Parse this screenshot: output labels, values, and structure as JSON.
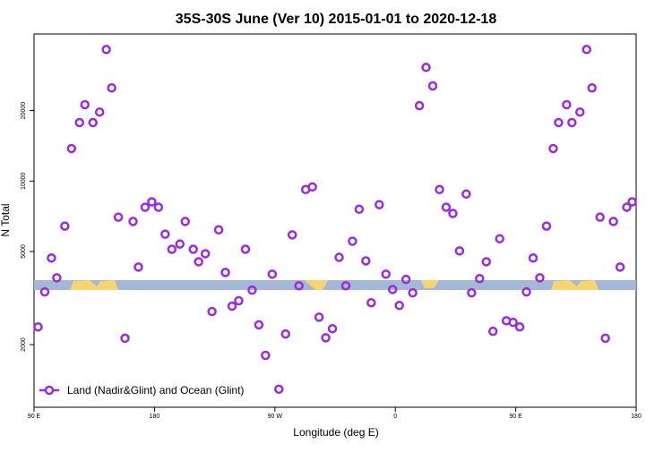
{
  "chart_data": {
    "type": "scatter",
    "title": "35S-30S June (Ver 10)   2015-01-01 to 2020-12-18",
    "x_label": "Longitude (deg E)",
    "y_label": "N Total",
    "xlim": [
      90,
      540
    ],
    "ylim": [
      1080,
      42500
    ],
    "y_scale": "log",
    "xticks": [
      {
        "value": 90,
        "label": "90 E"
      },
      180,
      {
        "value": 270,
        "label": "90 W"
      },
      {
        "value": 360,
        "label": "0"
      },
      {
        "value": 450,
        "label": "90 E"
      },
      {
        "value": 540,
        "label": "180"
      }
    ],
    "yticks": [
      2000,
      5000,
      10000,
      20000
    ],
    "legend": "bottom-left",
    "series": [
      {
        "name": "Land (Nadir&Glint) and Ocean (Glint)",
        "color": "#9a2be2",
        "x": [
          93,
          98,
          103,
          107,
          113,
          118,
          124,
          128,
          134,
          139,
          144,
          148,
          153,
          158,
          164,
          168,
          173,
          178,
          183,
          188,
          193,
          199,
          203,
          209,
          213,
          218,
          223,
          228,
          233,
          238,
          243,
          248,
          253,
          258,
          263,
          268,
          273,
          278,
          283,
          288,
          293,
          298,
          303,
          308,
          313,
          318,
          323,
          328,
          333,
          338,
          342,
          348,
          353,
          358,
          363,
          368,
          373,
          378,
          383,
          388,
          393,
          398,
          403,
          408,
          413,
          417,
          423,
          428,
          433,
          438,
          443,
          448,
          453,
          458,
          463,
          468,
          473,
          478,
          482,
          488,
          492,
          498,
          503,
          507,
          513,
          517,
          523,
          528,
          533,
          537
        ],
        "values": [
          2380,
          3360,
          4690,
          3860,
          6420,
          13770,
          17780,
          21200,
          17780,
          19720,
          36500,
          25000,
          7010,
          2130,
          6720,
          4290,
          7730,
          8150,
          7730,
          5930,
          5110,
          5380,
          6720,
          5110,
          4520,
          4890,
          2770,
          6190,
          4070,
          2920,
          3080,
          5110,
          3420,
          2430,
          1800,
          4000,
          1290,
          2220,
          5890,
          3570,
          9200,
          9440,
          2620,
          2140,
          2340,
          4720,
          3570,
          5530,
          7580,
          4560,
          3020,
          7930,
          4000,
          3440,
          2940,
          3800,
          3330,
          21000,
          30600,
          25500,
          9200,
          7730,
          7270,
          5030,
          8800,
          3330,
          3830,
          4520,
          2280,
          5670,
          2530,
          2490,
          2380,
          3360,
          4690,
          3860,
          6420,
          13770,
          17780,
          21200,
          17780,
          19720,
          36500,
          25000,
          7010,
          2130,
          6720,
          4290,
          7730,
          8150
        ]
      }
    ]
  }
}
